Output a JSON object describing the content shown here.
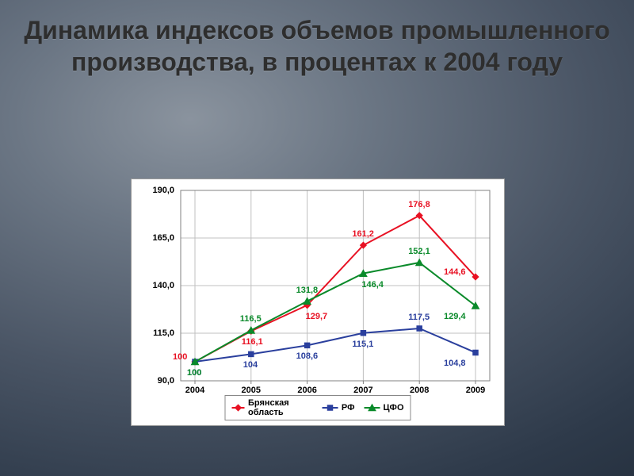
{
  "title": "Динамика индексов объемов промышленного производства, в процентах к 2004 году",
  "chart": {
    "type": "line",
    "background_color": "#ffffff",
    "grid_color": "#c0c0c0",
    "axis_color": "#808080",
    "ylim": [
      90,
      190
    ],
    "ytick_step": 25,
    "yticks": [
      90.0,
      115.0,
      140.0,
      165.0,
      190.0
    ],
    "ytick_labels": [
      "90,0",
      "115,0",
      "140,0",
      "165,0",
      "190,0"
    ],
    "xticks": [
      "2004",
      "2005",
      "2006",
      "2007",
      "2008",
      "2009"
    ],
    "label_fontsize": 11,
    "series": [
      {
        "name": "Брянская область",
        "color": "#e81123",
        "marker": "diamond",
        "marker_size": 6,
        "line_width": 2,
        "values": [
          100,
          116.1,
          129.7,
          161.2,
          176.8,
          144.6
        ],
        "labels": [
          "100",
          "116,1",
          "129,7",
          "161,2",
          "176,8",
          "144,6"
        ],
        "label_offsets": [
          {
            "dx": -28,
            "dy": -6
          },
          {
            "dx": -12,
            "dy": 14
          },
          {
            "dx": -2,
            "dy": 14
          },
          {
            "dx": -14,
            "dy": -14
          },
          {
            "dx": -14,
            "dy": -14
          },
          {
            "dx": -40,
            "dy": -6
          }
        ]
      },
      {
        "name": "РФ",
        "color": "#2a3f9d",
        "marker": "square",
        "marker_size": 6,
        "line_width": 2,
        "values": [
          100,
          104,
          108.6,
          115.1,
          117.5,
          104.8
        ],
        "labels": [
          "100",
          "104",
          "108,6",
          "115,1",
          "117,5",
          "104,8"
        ],
        "label_offsets": [
          {
            "dx": -10,
            "dy": 14
          },
          {
            "dx": -10,
            "dy": 14
          },
          {
            "dx": -14,
            "dy": 14
          },
          {
            "dx": -14,
            "dy": 14
          },
          {
            "dx": -14,
            "dy": -14
          },
          {
            "dx": -40,
            "dy": 14
          }
        ]
      },
      {
        "name": "ЦФО",
        "color": "#0a8a2a",
        "marker": "triangle",
        "marker_size": 7,
        "line_width": 2,
        "values": [
          100,
          116.5,
          131.8,
          146.4,
          152.1,
          129.4
        ],
        "labels": [
          "100",
          "116,5",
          "131,8",
          "146,4",
          "152,1",
          "129,4"
        ],
        "label_offsets": [
          {
            "dx": -10,
            "dy": 14
          },
          {
            "dx": -14,
            "dy": -14
          },
          {
            "dx": -14,
            "dy": -14
          },
          {
            "dx": -2,
            "dy": 14
          },
          {
            "dx": -14,
            "dy": -14
          },
          {
            "dx": -40,
            "dy": 14
          }
        ]
      }
    ]
  }
}
